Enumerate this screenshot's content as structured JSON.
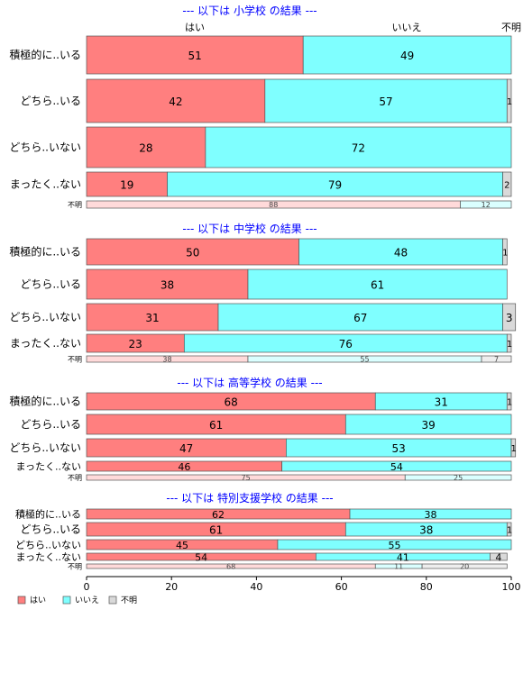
{
  "colors": {
    "hai": "#FF7F7F",
    "iie": "#7FFFFF",
    "fumei": "#D9D9D9",
    "title": "#0000FF",
    "axis": "#000000"
  },
  "header_labels": {
    "hai": "はい",
    "iie": "いいえ",
    "fumei": "不明"
  },
  "chart_data": {
    "type": "bar",
    "orientation": "horizontal-stacked-100",
    "xlim": [
      0,
      100
    ],
    "xticks": [
      "0",
      "20",
      "40",
      "60",
      "80",
      "100"
    ],
    "grid": false,
    "legend_position": "bottom-left",
    "legend": [
      "はい",
      "いいえ",
      "不明"
    ],
    "series_names": [
      "はい",
      "いいえ",
      "不明"
    ],
    "panels": [
      {
        "title": "--- 以下は 小学校 の結果 ---",
        "categories": [
          "積極的に..いる",
          "どちら..いる",
          "どちら..いない",
          "まったく..ない",
          "不明"
        ],
        "series": [
          {
            "name": "はい",
            "values": [
              51,
              42,
              28,
              19,
              88
            ]
          },
          {
            "name": "いいえ",
            "values": [
              49,
              57,
              72,
              79,
              12
            ]
          },
          {
            "name": "不明",
            "values": [
              0,
              1,
              0,
              2,
              0
            ]
          }
        ]
      },
      {
        "title": "--- 以下は 中学校 の結果 ---",
        "categories": [
          "積極的に..いる",
          "どちら..いる",
          "どちら..いない",
          "まったく..ない",
          "不明"
        ],
        "series": [
          {
            "name": "はい",
            "values": [
              50,
              38,
              31,
              23,
              38
            ]
          },
          {
            "name": "いいえ",
            "values": [
              48,
              61,
              67,
              76,
              55
            ]
          },
          {
            "name": "不明",
            "values": [
              1,
              0,
              3,
              1,
              7
            ]
          }
        ]
      },
      {
        "title": "--- 以下は 高等学校 の結果 ---",
        "categories": [
          "積極的に..いる",
          "どちら..いる",
          "どちら..いない",
          "まったく..ない",
          "不明"
        ],
        "series": [
          {
            "name": "はい",
            "values": [
              68,
              61,
              47,
              46,
              75
            ]
          },
          {
            "name": "いいえ",
            "values": [
              31,
              39,
              53,
              54,
              25
            ]
          },
          {
            "name": "不明",
            "values": [
              1,
              0,
              1,
              0,
              0
            ]
          }
        ]
      },
      {
        "title": "--- 以下は 特別支援学校 の結果 ---",
        "categories": [
          "積極的に..いる",
          "どちら..いる",
          "どちら..いない",
          "まったく..ない",
          "不明"
        ],
        "series": [
          {
            "name": "はい",
            "values": [
              62,
              61,
              45,
              54,
              68
            ]
          },
          {
            "name": "いいえ",
            "values": [
              38,
              38,
              55,
              41,
              11
            ]
          },
          {
            "name": "不明",
            "values": [
              0,
              1,
              0,
              4,
              20
            ]
          }
        ]
      }
    ]
  }
}
